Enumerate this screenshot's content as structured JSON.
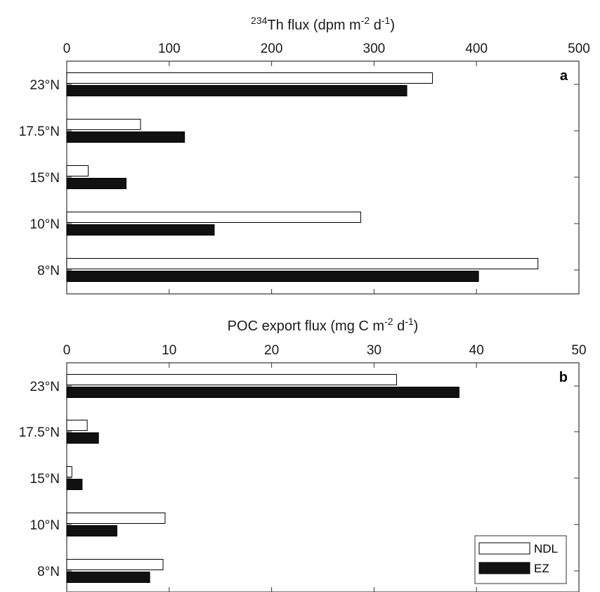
{
  "chart_data": [
    {
      "type": "bar",
      "orientation": "horizontal",
      "panel_label": "a",
      "title_prefix_sup": "234",
      "title_main": "Th flux (dpm m",
      "title_sup1": "-2",
      "title_mid": " d",
      "title_sup2": "-1",
      "title_end": ")",
      "categories": [
        "23°N",
        "17.5°N",
        "15°N",
        "10°N",
        "8°N"
      ],
      "series": [
        {
          "name": "NDL",
          "values": [
            357,
            72,
            21,
            287,
            460
          ]
        },
        {
          "name": "EZ",
          "values": [
            332,
            115,
            58,
            144,
            402
          ]
        }
      ],
      "xlim": [
        0,
        500
      ],
      "xticks": [
        "0",
        "100",
        "200",
        "300",
        "400",
        "500"
      ],
      "tick_values": [
        0,
        100,
        200,
        300,
        400,
        500
      ]
    },
    {
      "type": "bar",
      "orientation": "horizontal",
      "panel_label": "b",
      "title_main": "POC export flux (mg C m",
      "title_sup1": "-2",
      "title_mid": " d",
      "title_sup2": "-1",
      "title_end": ")",
      "categories": [
        "23°N",
        "17.5°N",
        "15°N",
        "10°N",
        "8°N"
      ],
      "series": [
        {
          "name": "NDL",
          "values": [
            32.2,
            2.0,
            0.5,
            9.6,
            9.4
          ]
        },
        {
          "name": "EZ",
          "values": [
            38.3,
            3.1,
            1.5,
            4.9,
            8.1
          ]
        }
      ],
      "xlim": [
        0,
        50
      ],
      "xticks": [
        "0",
        "10",
        "20",
        "30",
        "40",
        "50"
      ],
      "tick_values": [
        0,
        10,
        20,
        30,
        40,
        50
      ],
      "legend": {
        "position": "bottom-right",
        "entries": [
          "NDL",
          "EZ"
        ]
      }
    }
  ],
  "colors": {
    "NDL": "#ffffff",
    "EZ": "#111111",
    "axis": "#333333"
  }
}
